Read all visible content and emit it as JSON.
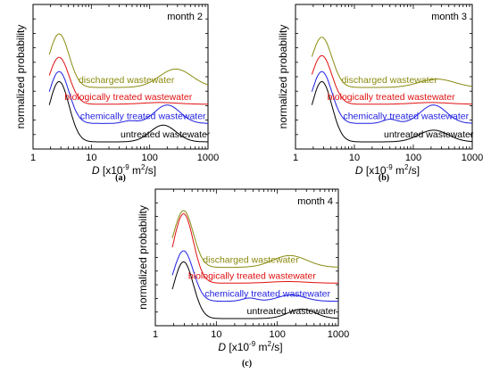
{
  "chart_data": [
    {
      "type": "line",
      "panel_caption": "(a)",
      "title": "month 2",
      "xlabel_symbol": "D",
      "xlabel_unit": "[x10",
      "xlabel_exp": "-9",
      "xlabel_unit2": " m",
      "xlabel_exp2": "2",
      "xlabel_tail": "/s]",
      "ylabel": "normalized probability",
      "xscale": "log",
      "xlim": [
        1,
        1000
      ],
      "xticks": [
        "1",
        "10",
        "100",
        "1000"
      ],
      "series": [
        {
          "name": "untreated wastewater",
          "color": "#000000",
          "offset": 0.0,
          "peaks": [
            [
              2.8,
              0.17,
              0.72
            ],
            [
              170,
              0.22,
              0.2
            ]
          ]
        },
        {
          "name": "chemically treated wastewater",
          "color": "#1f1fe0",
          "offset": 0.22,
          "peaks": [
            [
              2.8,
              0.17,
              0.62
            ],
            [
              45,
              0.12,
              0.03
            ],
            [
              200,
              0.22,
              0.22
            ]
          ]
        },
        {
          "name": "biologically treated wastewater",
          "color": "#e01010",
          "offset": 0.45,
          "peaks": [
            [
              2.8,
              0.17,
              0.56
            ],
            [
              150,
              0.3,
              0.02
            ]
          ]
        },
        {
          "name": "discharged wastewater",
          "color": "#8a8a10",
          "offset": 0.65,
          "peaks": [
            [
              2.8,
              0.17,
              0.64
            ],
            [
              280,
              0.28,
              0.22
            ]
          ]
        }
      ]
    },
    {
      "type": "line",
      "panel_caption": "(b)",
      "title": "month 3",
      "xlabel_symbol": "D",
      "xlabel_unit": "[x10",
      "xlabel_exp": "-9",
      "xlabel_unit2": " m",
      "xlabel_exp2": "2",
      "xlabel_tail": "/s]",
      "ylabel": "normalized probability",
      "xscale": "log",
      "xlim": [
        1,
        1000
      ],
      "xticks": [
        "1",
        "10",
        "100",
        "1000"
      ],
      "series": [
        {
          "name": "untreated wastewater",
          "color": "#000000",
          "offset": 0.0,
          "peaks": [
            [
              2.8,
              0.17,
              0.72
            ],
            [
              220,
              0.25,
              0.14
            ]
          ]
        },
        {
          "name": "chemically treated wastewater",
          "color": "#1f1fe0",
          "offset": 0.22,
          "peaks": [
            [
              2.8,
              0.17,
              0.62
            ],
            [
              40,
              0.12,
              0.05
            ],
            [
              220,
              0.22,
              0.22
            ]
          ]
        },
        {
          "name": "biologically treated wastewater",
          "color": "#e01010",
          "offset": 0.45,
          "peaks": [
            [
              2.8,
              0.17,
              0.58
            ],
            [
              200,
              0.3,
              0.02
            ]
          ]
        },
        {
          "name": "discharged wastewater",
          "color": "#8a8a10",
          "offset": 0.65,
          "peaks": [
            [
              2.8,
              0.17,
              0.6
            ],
            [
              250,
              0.3,
              0.1
            ]
          ]
        }
      ]
    },
    {
      "type": "line",
      "panel_caption": "(c)",
      "title": "month 4",
      "xlabel_symbol": "D",
      "xlabel_unit": "[x10",
      "xlabel_exp": "-9",
      "xlabel_unit2": " m",
      "xlabel_exp2": "2",
      "xlabel_tail": "/s]",
      "ylabel": "normalized probability",
      "xscale": "log",
      "xlim": [
        1,
        1000
      ],
      "xticks": [
        "1",
        "10",
        "100",
        "1000"
      ],
      "series": [
        {
          "name": "untreated wastewater",
          "color": "#000000",
          "offset": 0.0,
          "peaks": [
            [
              2.9,
              0.16,
              0.72
            ],
            [
              250,
              0.22,
              0.12
            ]
          ]
        },
        {
          "name": "chemically treated wastewater",
          "color": "#1f1fe0",
          "offset": 0.22,
          "peaks": [
            [
              2.9,
              0.16,
              0.64
            ],
            [
              35,
              0.12,
              0.04
            ],
            [
              170,
              0.22,
              0.08
            ]
          ]
        },
        {
          "name": "biologically treated wastewater",
          "color": "#e01010",
          "offset": 0.45,
          "peaks": [
            [
              2.9,
              0.16,
              0.88
            ],
            [
              150,
              0.3,
              0.02
            ]
          ]
        },
        {
          "name": "discharged wastewater",
          "color": "#8a8a10",
          "offset": 0.65,
          "peaks": [
            [
              2.9,
              0.16,
              0.72
            ],
            [
              160,
              0.28,
              0.15
            ]
          ]
        }
      ]
    }
  ]
}
